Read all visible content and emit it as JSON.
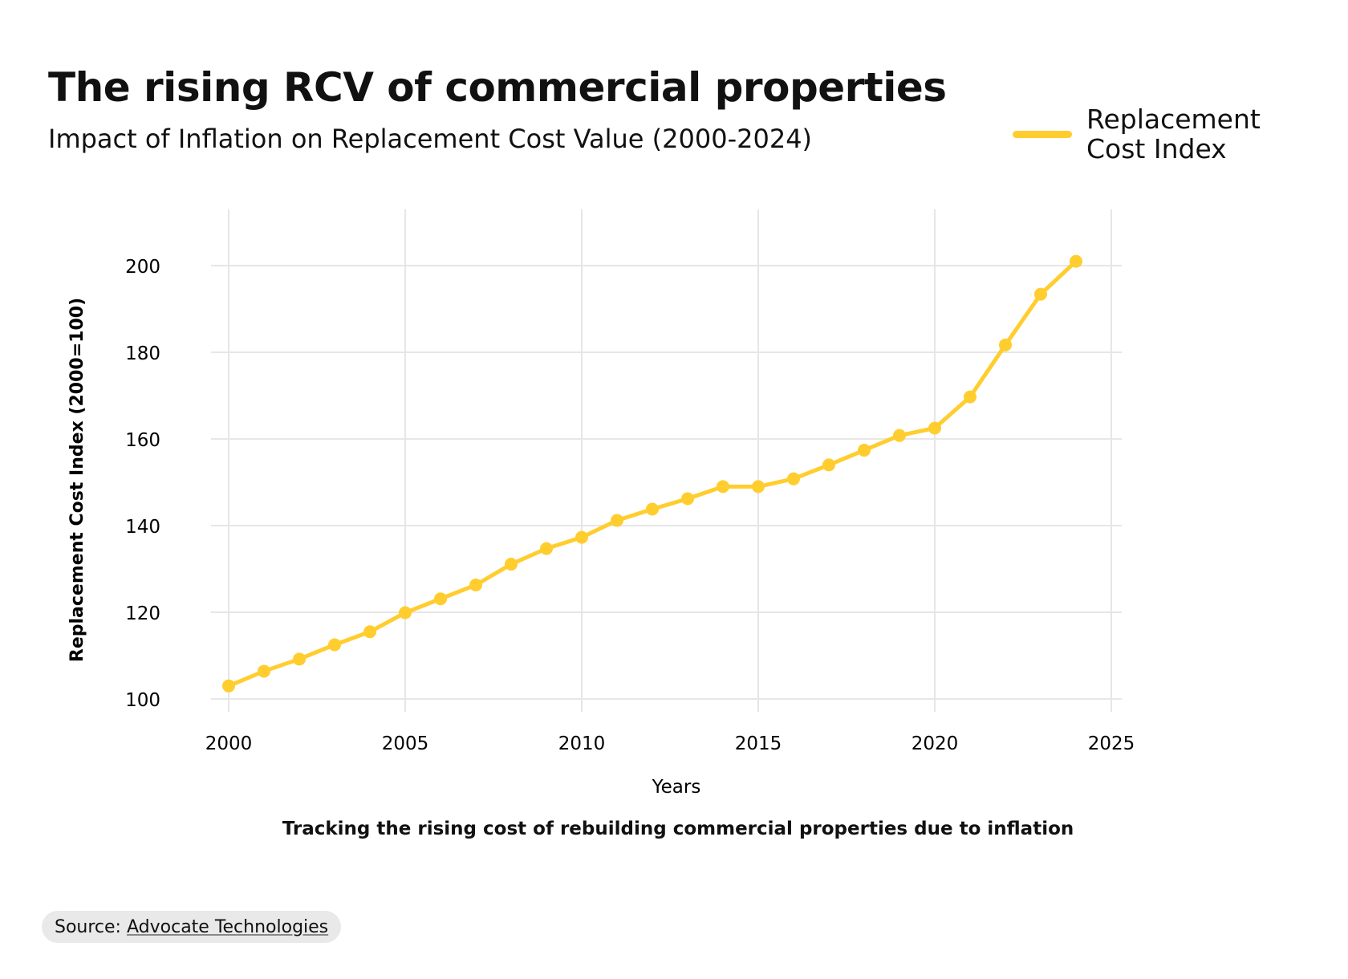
{
  "chart_data": {
    "type": "line",
    "title": "The rising RCV of commercial properties",
    "subtitle": "Impact of Inflation on Replacement Cost Value (2000-2024)",
    "xlabel": "Years",
    "ylabel": "Replacement Cost Index (2000=100)",
    "caption": "Tracking the rising cost of rebuilding commercial properties due to inflation",
    "xlim": [
      1999.5,
      2025.3
    ],
    "ylim": [
      97,
      213
    ],
    "xticks": [
      2000,
      2005,
      2010,
      2015,
      2020,
      2025
    ],
    "yticks": [
      100,
      120,
      140,
      160,
      180,
      200
    ],
    "grid": true,
    "legend_position": "top-right",
    "series": [
      {
        "name": "Replacement Cost Index",
        "color": "#FFCD2E",
        "x": [
          2000,
          2001,
          2002,
          2003,
          2004,
          2005,
          2006,
          2007,
          2008,
          2009,
          2010,
          2011,
          2012,
          2013,
          2014,
          2015,
          2016,
          2017,
          2018,
          2019,
          2020,
          2021,
          2022,
          2023,
          2024
        ],
        "values": [
          103.0,
          106.4,
          109.2,
          112.5,
          115.5,
          119.9,
          123.1,
          126.3,
          131.1,
          134.7,
          137.3,
          141.2,
          143.8,
          146.2,
          149.0,
          149.0,
          150.8,
          154.0,
          157.4,
          160.8,
          162.5,
          169.7,
          181.7,
          193.4,
          201.0
        ]
      }
    ]
  },
  "source": {
    "label": "Source:",
    "link_text": "Advocate Technologies"
  }
}
